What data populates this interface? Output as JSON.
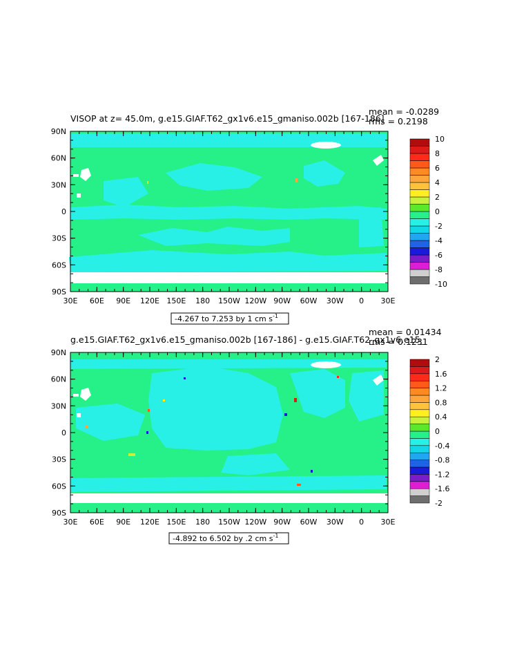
{
  "panels": [
    {
      "title": "VISOP at z=   45.0m, g.e15.GIAF.T62_gx1v6.e15_gmaniso.002b [167-186]",
      "mean_label": "mean = -0.0289",
      "rms_label": "rms = 0.2198",
      "range_label": "-4.267 to 7.253 by 1 cm s",
      "range_superscript": "-1",
      "colorbar_labels": [
        "10",
        "8",
        "6",
        "4",
        "2",
        "0",
        "-2",
        "-4",
        "-6",
        "-8",
        "-10"
      ],
      "colorbar_colors": [
        "#6e6e6e",
        "#cfcfcf",
        "#dc1fd2",
        "#7a1cc8",
        "#1a1adc",
        "#1f63e6",
        "#1fa8f0",
        "#11d7e6",
        "#28f0e6",
        "#26f088",
        "#5ce82a",
        "#c9f03a",
        "#ffee22",
        "#ffc23a",
        "#ffa53a",
        "#ff8a22",
        "#ff5a1a",
        "#ff2a1a",
        "#dc1a1a",
        "#b00e0e"
      ]
    },
    {
      "title": "g.e15.GIAF.T62_gx1v6.e15_gmaniso.002b [167-186] - g.e15.GIAF.T62_gx1v6.e15_",
      "mean_label": "mean = 0.01434",
      "rms_label": "rms = 0.1231",
      "range_label": "-4.892 to 6.502 by .2 cm s",
      "range_superscript": "-1",
      "colorbar_labels": [
        "2",
        "1.6",
        "1.2",
        "0.8",
        "0.4",
        "0",
        "-0.4",
        "-0.8",
        "-1.2",
        "-1.6",
        "-2"
      ],
      "colorbar_colors": [
        "#6e6e6e",
        "#cfcfcf",
        "#dc1fd2",
        "#7a1cc8",
        "#1a1adc",
        "#1f63e6",
        "#1fa8f0",
        "#11d7e6",
        "#28f0e6",
        "#26f088",
        "#5ce82a",
        "#c9f03a",
        "#ffee22",
        "#ffc23a",
        "#ffa53a",
        "#ff8a22",
        "#ff5a1a",
        "#ff2a1a",
        "#dc1a1a",
        "#b00e0e"
      ]
    }
  ],
  "axes": {
    "x_ticks": [
      "30E",
      "60E",
      "90E",
      "120E",
      "150E",
      "180",
      "150W",
      "120W",
      "90W",
      "60W",
      "30W",
      "0",
      "30E"
    ],
    "y_ticks": [
      "90N",
      "60N",
      "30N",
      "0",
      "30S",
      "60S",
      "90S"
    ]
  },
  "colors": {
    "ocean_main": "#26f088",
    "ocean_neg": "#28f0e6",
    "land": "#ffffff",
    "frame": "#000000"
  }
}
